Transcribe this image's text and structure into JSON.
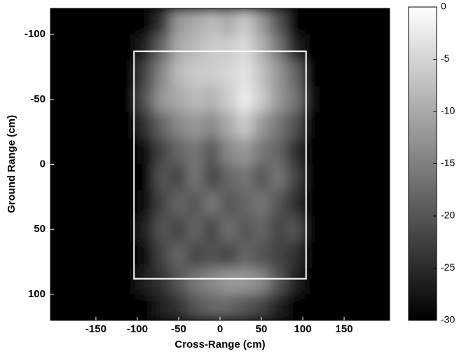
{
  "chart_data": {
    "type": "heatmap",
    "xlabel": "Cross-Range (cm)",
    "ylabel": "Ground Range (cm)",
    "xlim": [
      -205,
      205
    ],
    "ylim": [
      -120,
      120
    ],
    "y_inverted": true,
    "xticks": [
      -150,
      -100,
      -50,
      0,
      50,
      100,
      150
    ],
    "yticks": [
      -100,
      -50,
      0,
      50,
      100
    ],
    "x": [
      -110,
      -90,
      -70,
      -50,
      -30,
      -10,
      10,
      30,
      50,
      70,
      90,
      110
    ],
    "y": [
      -110,
      -90,
      -70,
      -50,
      -30,
      -10,
      10,
      30,
      50,
      70,
      90,
      110
    ],
    "z": [
      [
        -30,
        -30,
        -24,
        -12,
        -10,
        -8,
        -10,
        -6,
        -12,
        -20,
        -30,
        -30
      ],
      [
        -30,
        -26,
        -18,
        -10,
        -8,
        -6,
        -6,
        -4,
        -9,
        -16,
        -26,
        -30
      ],
      [
        -30,
        -22,
        -14,
        -8,
        -6,
        -6,
        -5,
        -3,
        -7,
        -12,
        -18,
        -30
      ],
      [
        -30,
        -20,
        -12,
        -10,
        -8,
        -9,
        -6,
        -2,
        -6,
        -12,
        -16,
        -28
      ],
      [
        -30,
        -24,
        -18,
        -14,
        -12,
        -14,
        -10,
        -6,
        -12,
        -16,
        -20,
        -30
      ],
      [
        -30,
        -28,
        -22,
        -18,
        -16,
        -20,
        -14,
        -12,
        -16,
        -18,
        -24,
        -30
      ],
      [
        -30,
        -30,
        -20,
        -22,
        -16,
        -22,
        -18,
        -16,
        -20,
        -16,
        -22,
        -30
      ],
      [
        -30,
        -28,
        -22,
        -18,
        -20,
        -16,
        -20,
        -18,
        -16,
        -20,
        -24,
        -30
      ],
      [
        -30,
        -26,
        -20,
        -22,
        -18,
        -22,
        -17,
        -20,
        -18,
        -22,
        -20,
        -30
      ],
      [
        -30,
        -28,
        -22,
        -18,
        -22,
        -20,
        -22,
        -18,
        -20,
        -22,
        -24,
        -30
      ],
      [
        -30,
        -26,
        -24,
        -20,
        -16,
        -14,
        -12,
        -12,
        -14,
        -20,
        -26,
        -30
      ],
      [
        -30,
        -30,
        -26,
        -24,
        -20,
        -18,
        -18,
        -20,
        -22,
        -26,
        -30,
        -30
      ]
    ],
    "colormap": [
      "#000000",
      "#ffffff"
    ],
    "clim": [
      -30,
      0
    ],
    "colorbar_ticks": [
      0,
      -5,
      -10,
      -15,
      -20,
      -25,
      -30
    ],
    "box": {
      "x": [
        -104,
        104
      ],
      "y": [
        -87,
        88
      ],
      "color": "#ffffff"
    }
  }
}
